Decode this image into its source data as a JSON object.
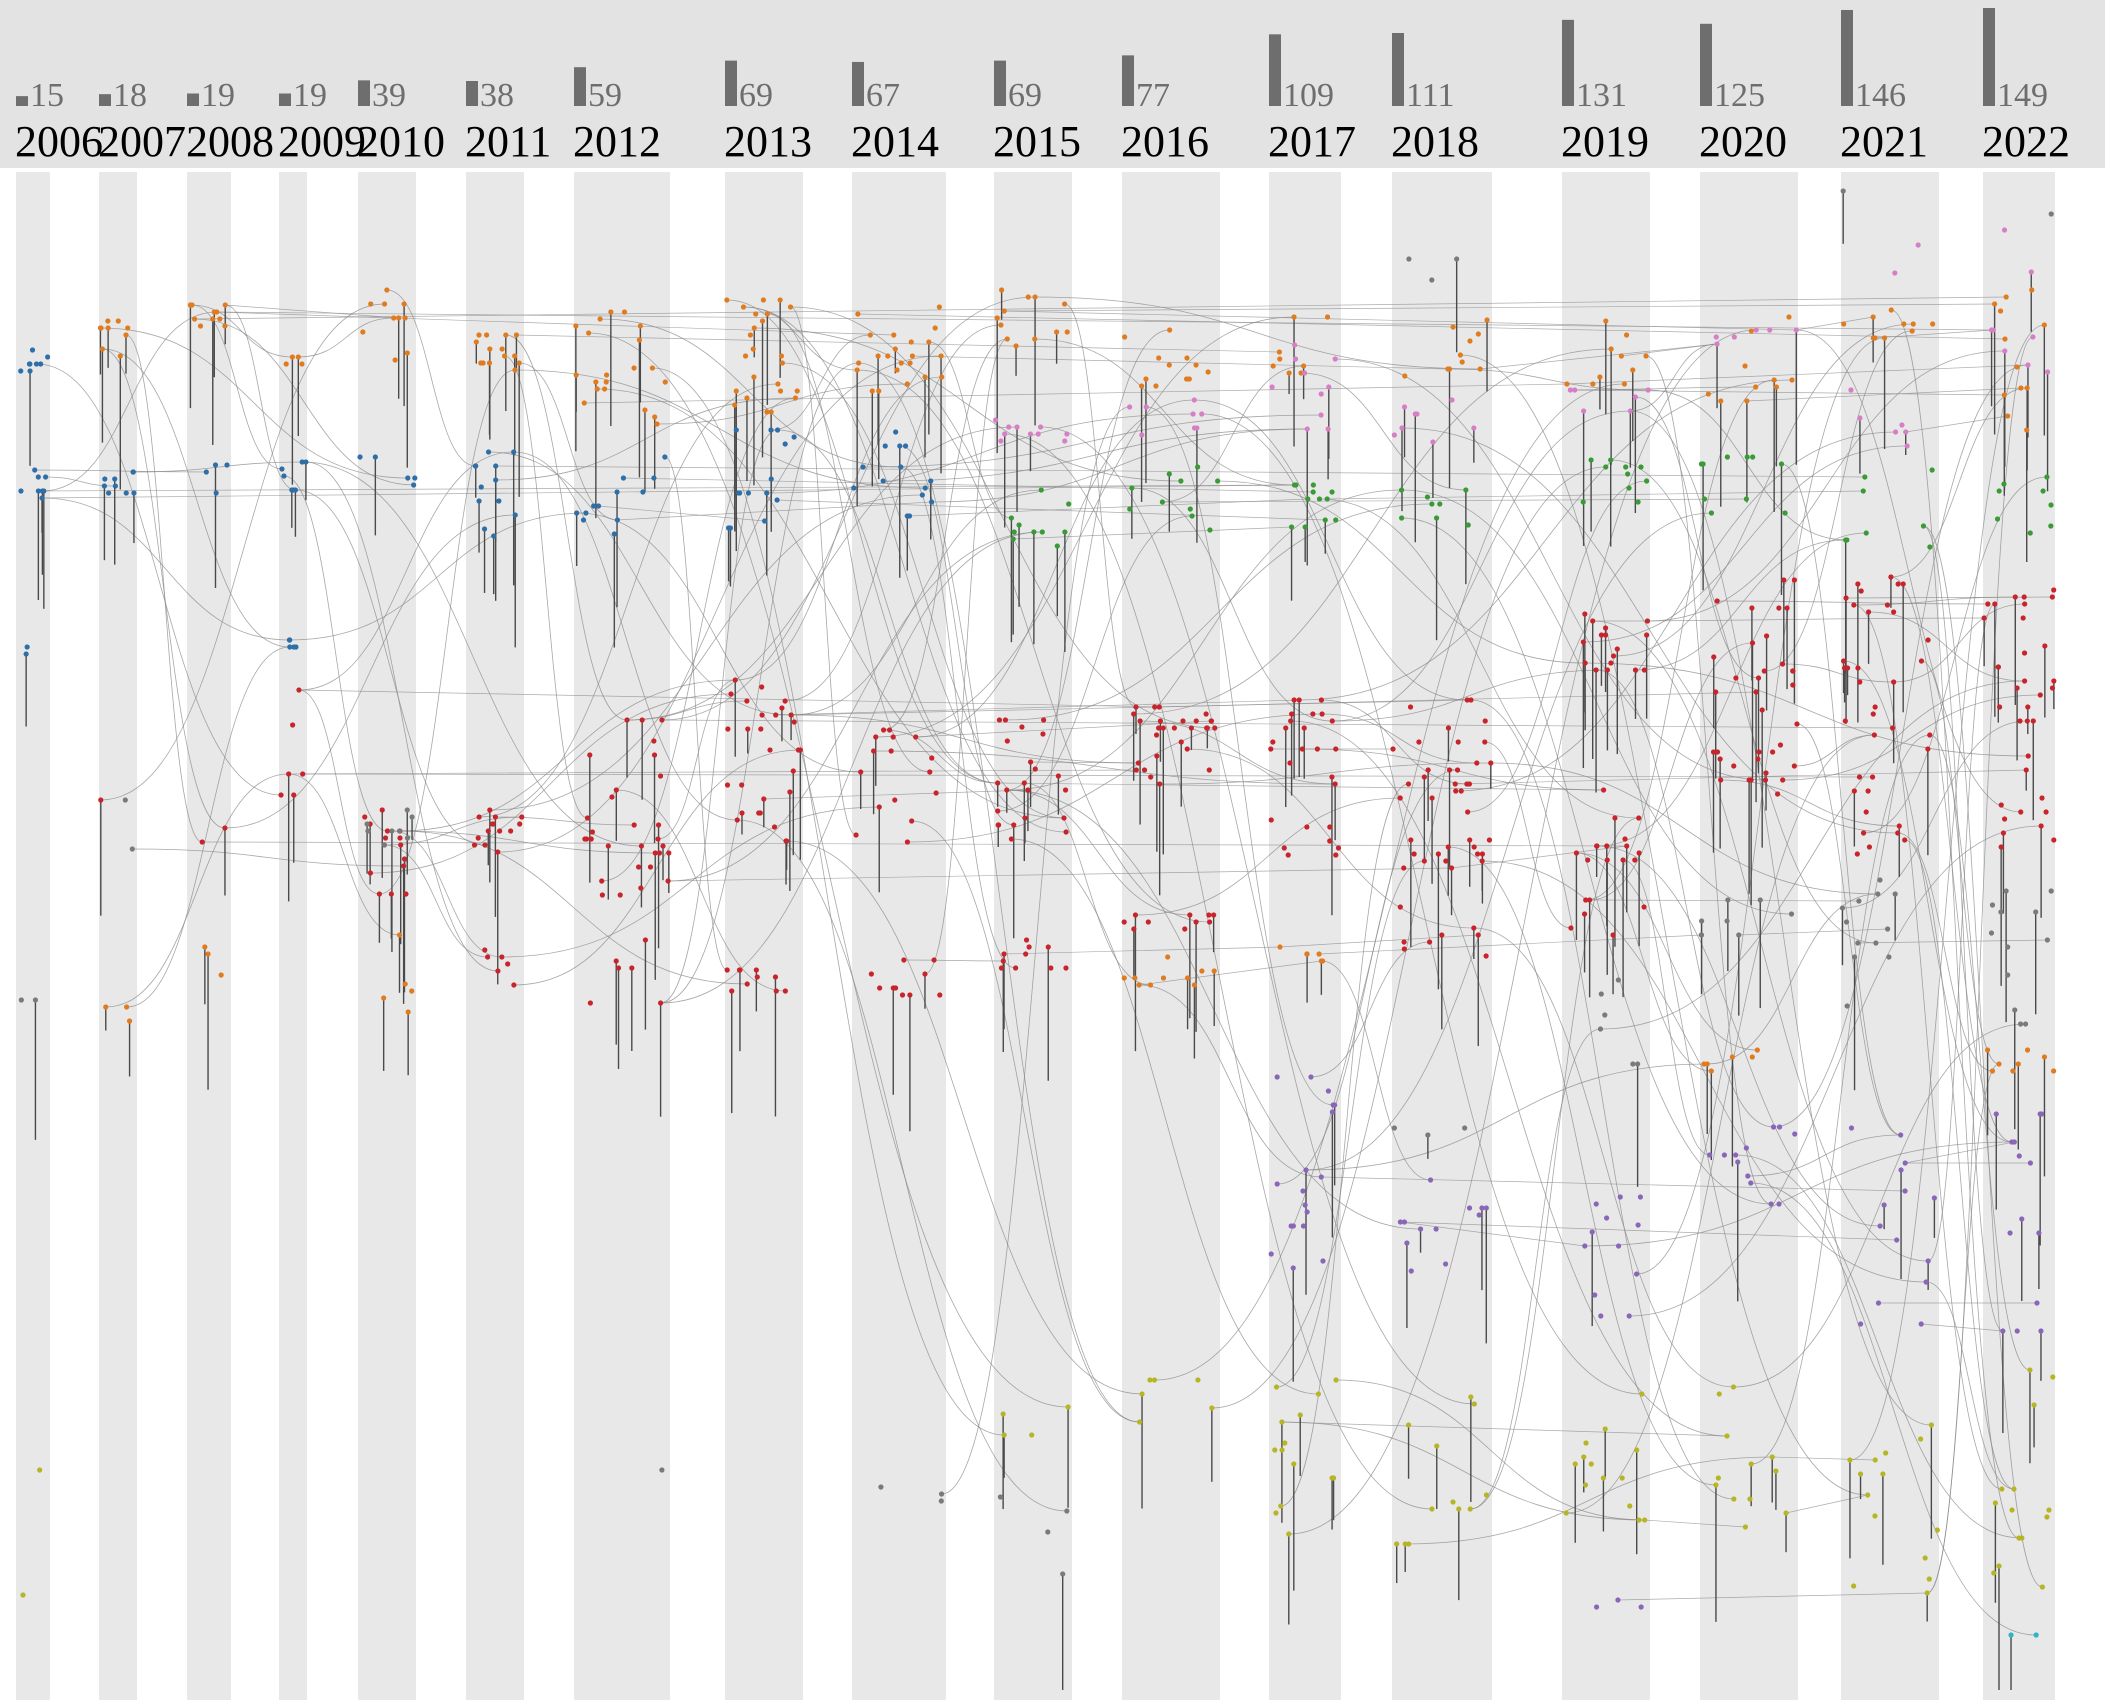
{
  "chart_data": {
    "type": "timeline-graph",
    "title": "",
    "years": [
      {
        "year": "2006",
        "count": "15"
      },
      {
        "year": "2007",
        "count": "18"
      },
      {
        "year": "2008",
        "count": "19"
      },
      {
        "year": "2009",
        "count": "19"
      },
      {
        "year": "2010",
        "count": "39"
      },
      {
        "year": "2011",
        "count": "38"
      },
      {
        "year": "2012",
        "count": "59"
      },
      {
        "year": "2013",
        "count": "69"
      },
      {
        "year": "2014",
        "count": "67"
      },
      {
        "year": "2015",
        "count": "69"
      },
      {
        "year": "2016",
        "count": "77"
      },
      {
        "year": "2017",
        "count": "109"
      },
      {
        "year": "2018",
        "count": "111"
      },
      {
        "year": "2019",
        "count": "131"
      },
      {
        "year": "2020",
        "count": "125"
      },
      {
        "year": "2021",
        "count": "146"
      },
      {
        "year": "2022",
        "count": "149"
      }
    ],
    "max_count": 149,
    "cluster_colors": {
      "blue": "#2e6fa8",
      "orange": "#e07b20",
      "red": "#c8242c",
      "green": "#3a9a35",
      "pink": "#d77fc6",
      "purple": "#8a66b8",
      "olive": "#b7b525",
      "gray": "#7a7a7a",
      "cyan": "#2bb5c7"
    }
  },
  "colors": {
    "header_background": "#e3e3e3",
    "column_band": "#e8e8e8",
    "bar": "#6e6e6e",
    "count_text": "#6e6e6e",
    "year_text": "#000000",
    "edge": "#8a8a8a"
  }
}
